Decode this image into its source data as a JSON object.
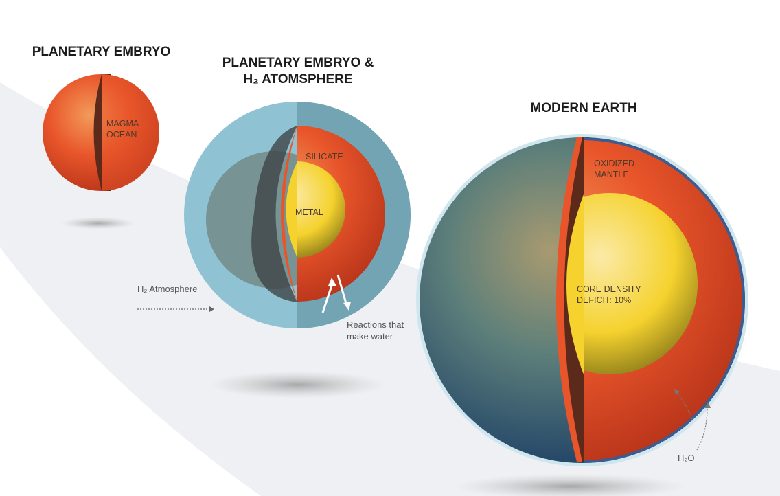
{
  "stages": [
    {
      "title": "PLANETARY EMBRYO",
      "labels": [
        "MAGMA\nOCEAN"
      ]
    },
    {
      "title_line1": "PLANETARY EMBRYO &",
      "title_line2": "H₂ ATOMSPHERE",
      "labels": [
        "SILICATE",
        "METAL"
      ]
    },
    {
      "title": "MODERN EARTH",
      "labels": [
        "OXIDIZED\nMANTLE",
        "CORE DENSITY\nDEFICIT: 10%"
      ]
    }
  ],
  "annotations": {
    "h2_atmosphere": "H₂ Atmosphere",
    "reactions": "Reactions that\nmake water",
    "h2o": "H₂O"
  },
  "colors": {
    "magma": "#e8552a",
    "metal": "#f5d22e",
    "atmosphere": "#7fb3c4",
    "band": "#eef0f3"
  }
}
